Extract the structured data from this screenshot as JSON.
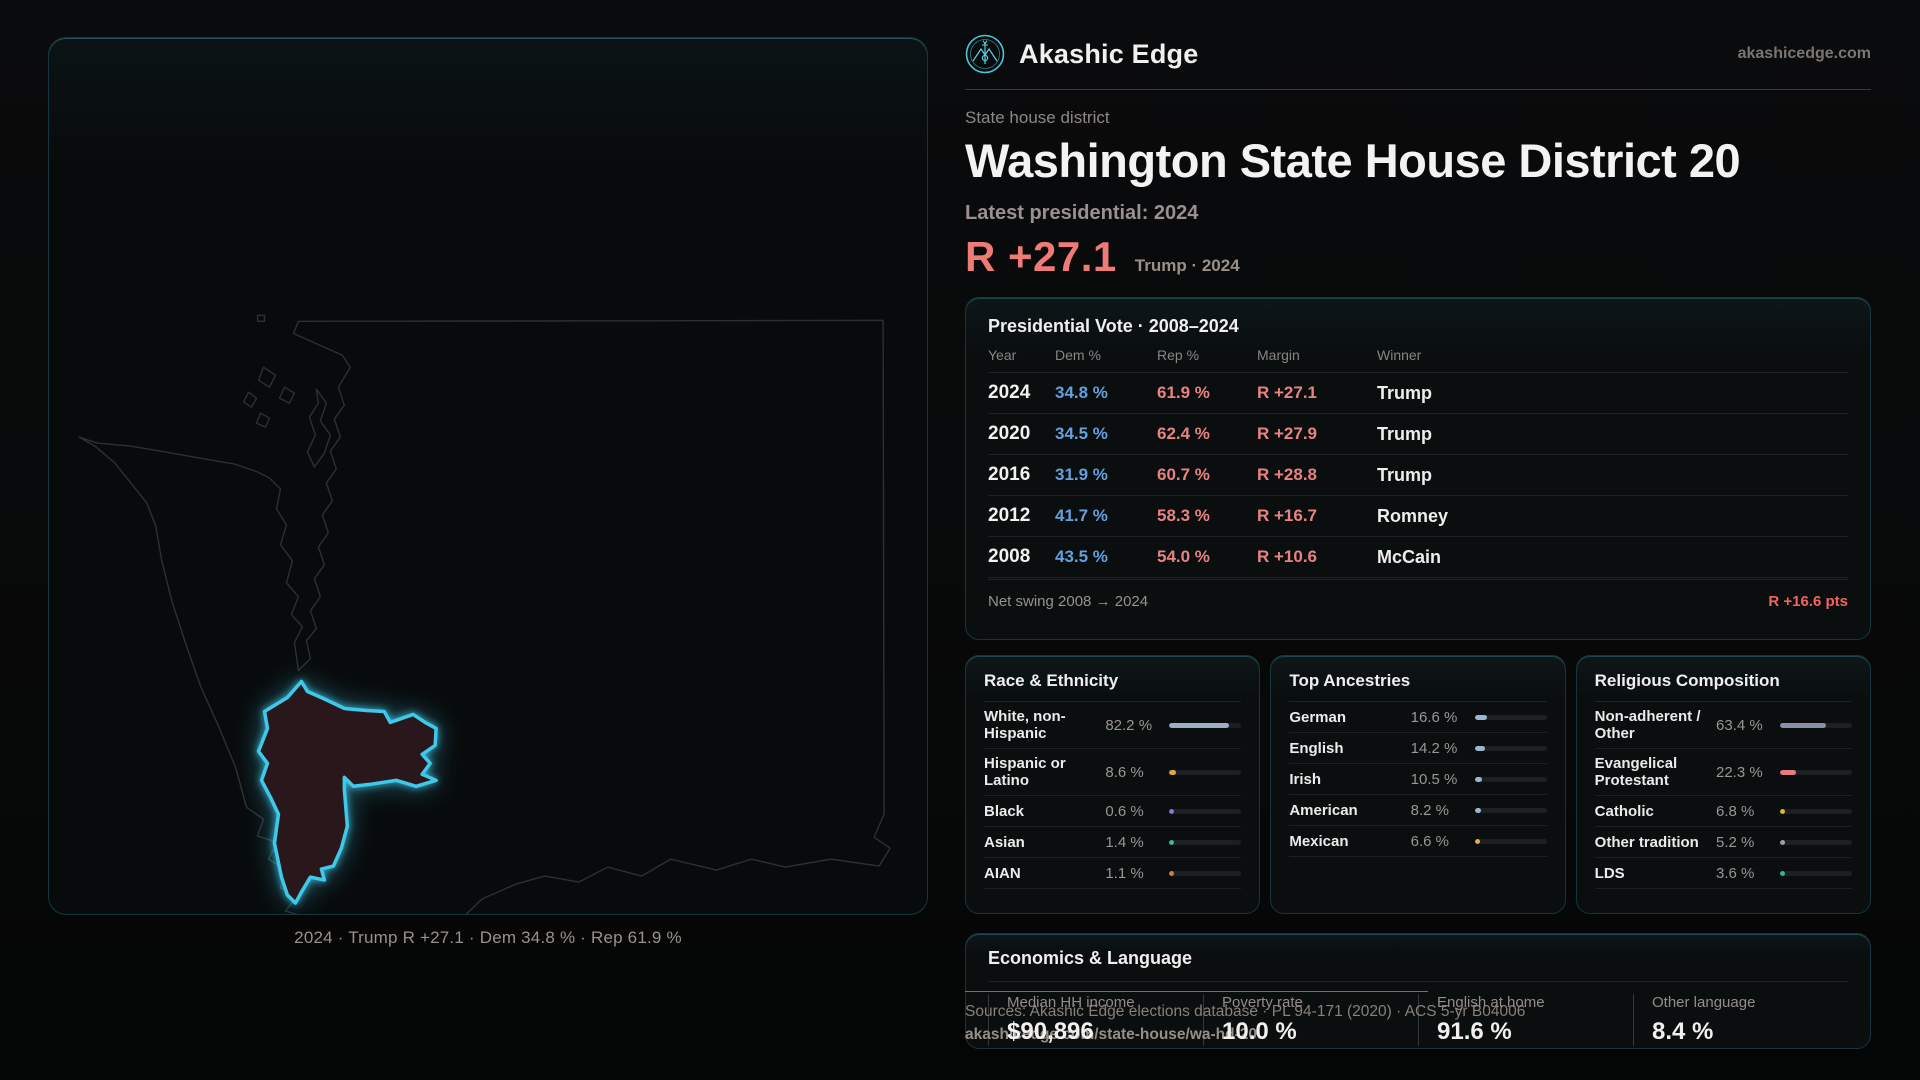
{
  "header": {
    "brand": "Akashic Edge",
    "domain": "akashicedge.com"
  },
  "hero": {
    "eyebrow": "State house district",
    "title": "Washington State House District 20",
    "subtitle": "Latest presidential: 2024",
    "margin_stat": "R +27.1",
    "margin_note": "Trump · 2024",
    "accent_color": "#ef7b77"
  },
  "map": {
    "caption": "2024 · Trump R +27.1 · Dem 34.8 % · Rep 61.9 %",
    "district_outline_color": "#3fc9e8",
    "district_fill_color": "#2a171b",
    "state_outline_color": "#2d3033"
  },
  "presidential": {
    "title": "Presidential Vote · 2008–2024",
    "columns": [
      "Year",
      "Dem %",
      "Rep %",
      "Margin",
      "Winner"
    ],
    "dem_color": "#64a0de",
    "rep_color": "#e88382",
    "rows": [
      {
        "year": "2024",
        "dem": "34.8 %",
        "rep": "61.9 %",
        "margin": "R +27.1",
        "winner": "Trump"
      },
      {
        "year": "2020",
        "dem": "34.5 %",
        "rep": "62.4 %",
        "margin": "R +27.9",
        "winner": "Trump"
      },
      {
        "year": "2016",
        "dem": "31.9 %",
        "rep": "60.7 %",
        "margin": "R +28.8",
        "winner": "Trump"
      },
      {
        "year": "2012",
        "dem": "41.7 %",
        "rep": "58.3 %",
        "margin": "R +16.7",
        "winner": "Romney"
      },
      {
        "year": "2008",
        "dem": "43.5 %",
        "rep": "54.0 %",
        "margin": "R +10.6",
        "winner": "McCain"
      }
    ],
    "net_swing_label": "Net swing 2008 → 2024",
    "net_swing_value": "R +16.6 pts"
  },
  "race": {
    "title": "Race & Ethnicity",
    "rows": [
      {
        "label": "White, non-Hispanic",
        "value": "82.2 %",
        "pct": 82.2,
        "color": "#9fadc4"
      },
      {
        "label": "Hispanic or Latino",
        "value": "8.6 %",
        "pct": 8.6,
        "color": "#e2a43e"
      },
      {
        "label": "Black",
        "value": "0.6 %",
        "pct": 0.6,
        "color": "#8279d6"
      },
      {
        "label": "Asian",
        "value": "1.4 %",
        "pct": 1.4,
        "color": "#3fb3a4"
      },
      {
        "label": "AIAN",
        "value": "1.1 %",
        "pct": 1.1,
        "color": "#da7a3b"
      }
    ]
  },
  "ancestries": {
    "title": "Top Ancestries",
    "rows": [
      {
        "label": "German",
        "value": "16.6 %",
        "pct": 16.6,
        "color": "#9db6d0"
      },
      {
        "label": "English",
        "value": "14.2 %",
        "pct": 14.2,
        "color": "#9db6d0"
      },
      {
        "label": "Irish",
        "value": "10.5 %",
        "pct": 10.5,
        "color": "#9db6d0"
      },
      {
        "label": "American",
        "value": "8.2 %",
        "pct": 8.2,
        "color": "#9db6d0"
      },
      {
        "label": "Mexican",
        "value": "6.6 %",
        "pct": 6.6,
        "color": "#e2b03e"
      }
    ]
  },
  "religion": {
    "title": "Religious Composition",
    "rows": [
      {
        "label": "Non-adherent / Other",
        "value": "63.4 %",
        "pct": 63.4,
        "color": "#8792a6"
      },
      {
        "label": "Evangelical Protestant",
        "value": "22.3 %",
        "pct": 22.3,
        "color": "#e57d7d"
      },
      {
        "label": "Catholic",
        "value": "6.8 %",
        "pct": 6.8,
        "color": "#e2b03e"
      },
      {
        "label": "Other tradition",
        "value": "5.2 %",
        "pct": 5.2,
        "color": "#9aa1a8"
      },
      {
        "label": "LDS",
        "value": "3.6 %",
        "pct": 3.6,
        "color": "#2fb3a0"
      }
    ]
  },
  "economics": {
    "title": "Economics & Language",
    "stats": [
      {
        "label": "Median HH income",
        "value": "$90,896"
      },
      {
        "label": "Poverty rate",
        "value": "10.0 %"
      },
      {
        "label": "English at home",
        "value": "91.6 %"
      },
      {
        "label": "Other language",
        "value": "8.4 %"
      }
    ]
  },
  "footer": {
    "sources": "Sources: Akashic Edge elections database · PL 94-171 (2020) · ACS 5-yr B04006",
    "permalink": "akashicedge.com/state-house/wa-hd-20"
  }
}
